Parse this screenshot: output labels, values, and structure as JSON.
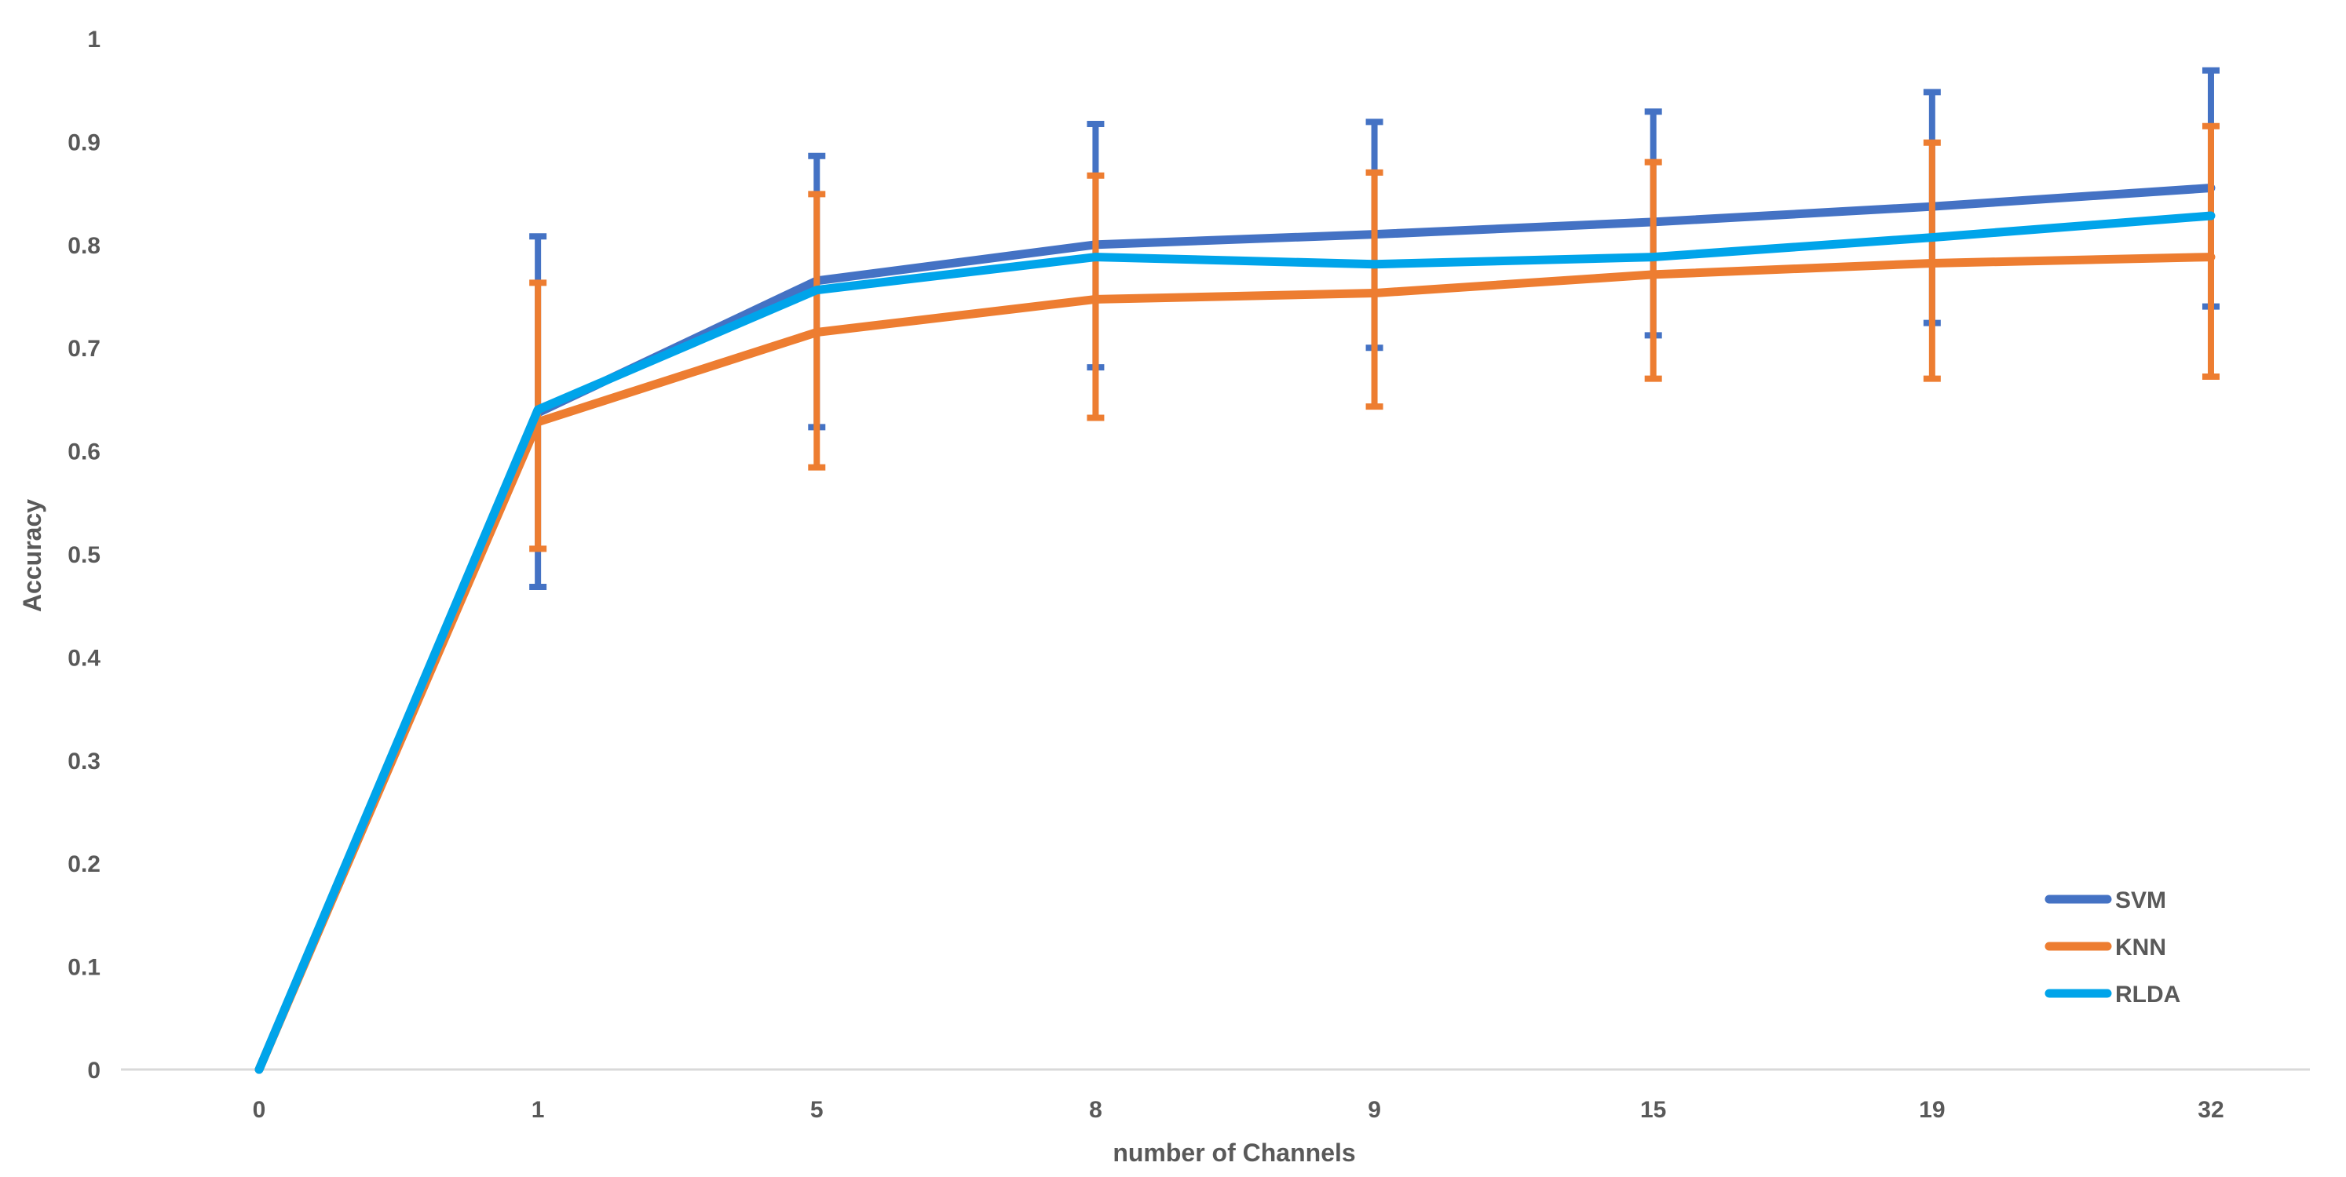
{
  "chart_data": {
    "type": "line",
    "title": "",
    "xlabel": "number of Channels",
    "ylabel": "Accuracy",
    "categories": [
      "0",
      "1",
      "5",
      "8",
      "9",
      "15",
      "19",
      "32"
    ],
    "yticks": [
      "0",
      "0.1",
      "0.2",
      "0.3",
      "0.4",
      "0.5",
      "0.6",
      "0.7",
      "0.8",
      "0.9",
      "1"
    ],
    "ylim": [
      0,
      1
    ],
    "grid": false,
    "legend_position": "right",
    "colors": {
      "background": "#FFFFFF",
      "axis_line": "#D9D9D9",
      "text": "#595959"
    },
    "series": [
      {
        "name": "SVM",
        "color": "#4472C4",
        "values": [
          0,
          0.637,
          0.765,
          0.8,
          0.81,
          0.822,
          0.837,
          0.855
        ],
        "error_upper": [
          null,
          0.808,
          0.886,
          0.917,
          0.919,
          0.929,
          0.948,
          0.969
        ],
        "error_lower": [
          null,
          0.468,
          0.623,
          0.681,
          0.7,
          0.712,
          0.724,
          0.74
        ]
      },
      {
        "name": "KNN",
        "color": "#ED7D31",
        "values": [
          0,
          0.628,
          0.715,
          0.747,
          0.753,
          0.771,
          0.782,
          0.788
        ],
        "error_upper": [
          null,
          0.763,
          0.849,
          0.867,
          0.87,
          0.88,
          0.899,
          0.915
        ],
        "error_lower": [
          null,
          0.505,
          0.584,
          0.632,
          0.643,
          0.67,
          0.67,
          0.672
        ]
      },
      {
        "name": "RLDA",
        "color": "#00A4EA",
        "values": [
          0,
          0.64,
          0.756,
          0.788,
          0.781,
          0.788,
          0.807,
          0.828
        ],
        "error_upper": null,
        "error_lower": null
      }
    ]
  }
}
